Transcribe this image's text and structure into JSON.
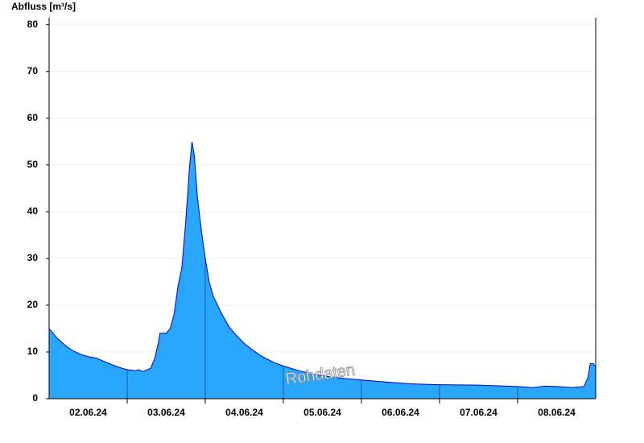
{
  "chart_data": {
    "type": "area",
    "title": "Abfluss [m³/s]",
    "annotation": "Rohdaten",
    "x": [
      0,
      0.1,
      0.2,
      0.3,
      0.4,
      0.5,
      0.6,
      0.7,
      0.8,
      0.9,
      1.0,
      1.1,
      1.15,
      1.2,
      1.3,
      1.35,
      1.4,
      1.42,
      1.5,
      1.55,
      1.6,
      1.65,
      1.7,
      1.75,
      1.8,
      1.83,
      1.86,
      1.9,
      1.95,
      2.0,
      2.05,
      2.1,
      2.2,
      2.3,
      2.4,
      2.5,
      2.6,
      2.7,
      2.8,
      2.9,
      3.0,
      3.2,
      3.4,
      3.6,
      3.8,
      4.0,
      4.3,
      4.6,
      5.0,
      5.5,
      6.0,
      6.2,
      6.35,
      6.5,
      6.7,
      6.85,
      6.9,
      6.93,
      6.97,
      7.0
    ],
    "values": [
      15,
      13,
      11.5,
      10.3,
      9.5,
      9,
      8.7,
      8,
      7.3,
      6.7,
      6.2,
      6,
      6.2,
      5.8,
      6.5,
      8.5,
      12,
      14,
      14,
      15,
      18,
      24,
      28,
      38,
      50,
      55,
      52,
      43,
      36,
      30,
      25,
      22,
      18.5,
      15.5,
      13.5,
      11.8,
      10.5,
      9.3,
      8.4,
      7.6,
      7,
      6,
      5.2,
      4.7,
      4.3,
      4,
      3.6,
      3.2,
      3,
      2.9,
      2.6,
      2.4,
      2.7,
      2.6,
      2.4,
      2.6,
      4.5,
      7.5,
      7.5,
      6.8
    ],
    "color": "#29a7ff",
    "line_color": "#0000cc",
    "xlim": [
      0,
      7
    ],
    "xticks": [
      {
        "value": 0.5,
        "label": "02.06.24"
      },
      {
        "value": 1.5,
        "label": "03.06.24"
      },
      {
        "value": 2.5,
        "label": "04.06.24"
      },
      {
        "value": 3.5,
        "label": "05.06.24"
      },
      {
        "value": 4.5,
        "label": "06.06.24"
      },
      {
        "value": 5.5,
        "label": "07.06.24"
      },
      {
        "value": 6.5,
        "label": "08.06.24"
      }
    ],
    "xminor": [
      1,
      2,
      3,
      4,
      5,
      6
    ],
    "ylim": [
      0,
      81.5
    ],
    "yticks": [
      0,
      10,
      20,
      30,
      40,
      50,
      60,
      70,
      80
    ],
    "grid": true
  }
}
